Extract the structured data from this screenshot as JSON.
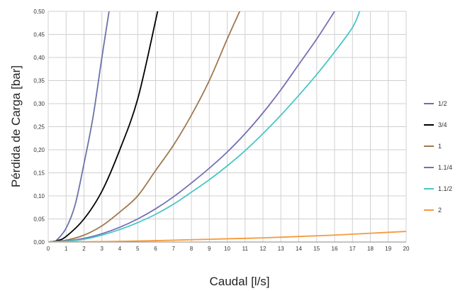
{
  "chart_data": {
    "type": "line",
    "title": "",
    "xlabel": "Caudal [l/s]",
    "ylabel": "Pérdida de Carga [bar]",
    "xlim": [
      0,
      20
    ],
    "ylim": [
      0,
      0.5
    ],
    "x_ticks": [
      "0",
      "1",
      "2",
      "3",
      "4",
      "5",
      "6",
      "7",
      "8",
      "9",
      "10",
      "11",
      "12",
      "13",
      "14",
      "15",
      "16",
      "17",
      "18",
      "19",
      "20"
    ],
    "y_ticks": [
      "0,00",
      "0,05",
      "0,10",
      "0,15",
      "0,20",
      "0,25",
      "0,30",
      "0,35",
      "0,40",
      "0,45",
      "0,50"
    ],
    "grid": true,
    "legend_position": "right",
    "series": [
      {
        "name": "1/2",
        "color": "#6b73a8",
        "points": [
          [
            0,
            0
          ],
          [
            0.3,
            0
          ],
          [
            0.5,
            0.005
          ],
          [
            1,
            0.03
          ],
          [
            1.5,
            0.08
          ],
          [
            2,
            0.17
          ],
          [
            2.5,
            0.27
          ],
          [
            3,
            0.4
          ],
          [
            3.4,
            0.5
          ]
        ]
      },
      {
        "name": "3/4",
        "color": "#000000",
        "points": [
          [
            0,
            0
          ],
          [
            0.5,
            0.003
          ],
          [
            1,
            0.012
          ],
          [
            2,
            0.05
          ],
          [
            3,
            0.11
          ],
          [
            4,
            0.2
          ],
          [
            5,
            0.31
          ],
          [
            6,
            0.48
          ],
          [
            6.1,
            0.5
          ]
        ]
      },
      {
        "name": "1",
        "color": "#a07850",
        "points": [
          [
            0,
            0
          ],
          [
            1,
            0.004
          ],
          [
            2,
            0.015
          ],
          [
            3,
            0.035
          ],
          [
            4,
            0.065
          ],
          [
            5,
            0.1
          ],
          [
            6,
            0.155
          ],
          [
            7,
            0.21
          ],
          [
            8,
            0.275
          ],
          [
            9,
            0.35
          ],
          [
            10,
            0.44
          ],
          [
            10.7,
            0.5
          ]
        ]
      },
      {
        "name": "1.1/4",
        "color": "#7570b3",
        "points": [
          [
            0,
            0
          ],
          [
            1,
            0.002
          ],
          [
            2,
            0.008
          ],
          [
            3,
            0.018
          ],
          [
            4,
            0.032
          ],
          [
            5,
            0.05
          ],
          [
            6,
            0.072
          ],
          [
            7,
            0.098
          ],
          [
            8,
            0.128
          ],
          [
            9,
            0.16
          ],
          [
            10,
            0.195
          ],
          [
            11,
            0.235
          ],
          [
            12,
            0.28
          ],
          [
            13,
            0.33
          ],
          [
            14,
            0.385
          ],
          [
            15,
            0.44
          ],
          [
            16,
            0.5
          ]
        ]
      },
      {
        "name": "1.1/2",
        "color": "#4bc6c6",
        "points": [
          [
            0,
            0
          ],
          [
            1,
            0.0015
          ],
          [
            2,
            0.006
          ],
          [
            3,
            0.015
          ],
          [
            4,
            0.027
          ],
          [
            5,
            0.042
          ],
          [
            6,
            0.06
          ],
          [
            7,
            0.082
          ],
          [
            8,
            0.108
          ],
          [
            9,
            0.135
          ],
          [
            10,
            0.165
          ],
          [
            11,
            0.198
          ],
          [
            12,
            0.235
          ],
          [
            13,
            0.275
          ],
          [
            14,
            0.318
          ],
          [
            15,
            0.363
          ],
          [
            16,
            0.412
          ],
          [
            17,
            0.465
          ],
          [
            17.4,
            0.5
          ]
        ]
      },
      {
        "name": "2",
        "color": "#f59a3c",
        "points": [
          [
            0,
            0
          ],
          [
            2,
            0.0005
          ],
          [
            4,
            0.0015
          ],
          [
            6,
            0.003
          ],
          [
            8,
            0.005
          ],
          [
            10,
            0.007
          ],
          [
            12,
            0.009
          ],
          [
            14,
            0.012
          ],
          [
            16,
            0.015
          ],
          [
            18,
            0.019
          ],
          [
            20,
            0.023
          ]
        ]
      }
    ]
  }
}
